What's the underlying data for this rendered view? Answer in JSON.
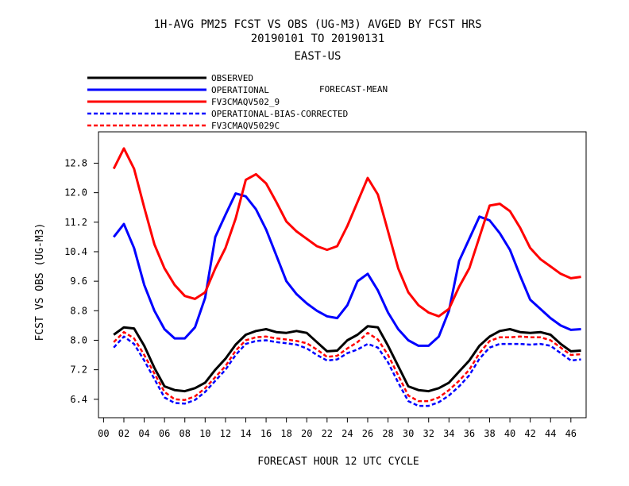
{
  "chart_data": {
    "type": "line",
    "title": "1H-AVG PM25 FCST VS OBS (UG-M3)  AVGED BY FCST HRS",
    "subtitle": "20190101 TO 20190131",
    "region": "EAST-US",
    "legend_note": "FORECAST-MEAN",
    "xlabel": "FORECAST HOUR  12 UTC CYCLE",
    "ylabel": "FCST VS OBS (UG-M3)",
    "xlim": [
      -0.5,
      47.5
    ],
    "ylim": [
      5.9,
      13.65
    ],
    "x_ticks": [
      "00",
      "02",
      "04",
      "06",
      "08",
      "10",
      "12",
      "14",
      "16",
      "18",
      "20",
      "22",
      "24",
      "26",
      "28",
      "30",
      "32",
      "34",
      "36",
      "38",
      "40",
      "42",
      "44",
      "46"
    ],
    "y_ticks": [
      "6.4",
      "7.2",
      "8.0",
      "8.8",
      "9.6",
      "10.4",
      "11.2",
      "12.0",
      "12.8"
    ],
    "x": [
      1,
      2,
      3,
      4,
      5,
      6,
      7,
      8,
      9,
      10,
      11,
      12,
      13,
      14,
      15,
      16,
      17,
      18,
      19,
      20,
      21,
      22,
      23,
      24,
      25,
      26,
      27,
      28,
      29,
      30,
      31,
      32,
      33,
      34,
      35,
      36,
      37,
      38,
      39,
      40,
      41,
      42,
      43,
      44,
      45,
      46,
      47
    ],
    "series": [
      {
        "name": "OBSERVED",
        "color": "#000000",
        "dashed": false,
        "values": [
          8.15,
          8.35,
          8.32,
          7.85,
          7.25,
          6.75,
          6.65,
          6.62,
          6.7,
          6.85,
          7.2,
          7.5,
          7.88,
          8.15,
          8.25,
          8.3,
          8.22,
          8.2,
          8.25,
          8.2,
          7.95,
          7.7,
          7.72,
          8.0,
          8.15,
          8.38,
          8.35,
          7.85,
          7.3,
          6.75,
          6.65,
          6.62,
          6.7,
          6.85,
          7.15,
          7.45,
          7.85,
          8.1,
          8.25,
          8.3,
          8.22,
          8.2,
          8.22,
          8.15,
          7.9,
          7.7,
          7.72
        ]
      },
      {
        "name": "OPERATIONAL",
        "color": "#0000ff",
        "dashed": false,
        "values": [
          10.8,
          11.15,
          10.5,
          9.5,
          8.8,
          8.3,
          8.05,
          8.05,
          8.35,
          9.15,
          10.8,
          11.4,
          11.98,
          11.9,
          11.55,
          11.0,
          10.3,
          9.6,
          9.25,
          9.0,
          8.8,
          8.65,
          8.6,
          8.95,
          9.6,
          9.8,
          9.35,
          8.75,
          8.3,
          8.0,
          7.85,
          7.85,
          8.1,
          8.8,
          10.15,
          10.75,
          11.35,
          11.25,
          10.9,
          10.45,
          9.75,
          9.1,
          8.85,
          8.6,
          8.4,
          8.28,
          8.3
        ]
      },
      {
        "name": "FV3CMAQV502_9",
        "color": "#ff0000",
        "dashed": false,
        "values": [
          12.65,
          13.2,
          12.65,
          11.6,
          10.6,
          9.95,
          9.5,
          9.2,
          9.12,
          9.3,
          9.95,
          10.5,
          11.3,
          12.35,
          12.5,
          12.25,
          11.75,
          11.22,
          10.95,
          10.75,
          10.55,
          10.45,
          10.55,
          11.1,
          11.75,
          12.4,
          11.95,
          10.95,
          9.95,
          9.3,
          8.95,
          8.75,
          8.65,
          8.85,
          9.45,
          9.95,
          10.8,
          11.65,
          11.7,
          11.5,
          11.05,
          10.5,
          10.2,
          10.0,
          9.8,
          9.68,
          9.72
        ]
      },
      {
        "name": "OPERATIONAL-BIAS-CORRECTED",
        "color": "#0000ff",
        "dashed": true,
        "values": [
          7.8,
          8.1,
          7.9,
          7.45,
          6.95,
          6.45,
          6.3,
          6.28,
          6.38,
          6.6,
          6.9,
          7.2,
          7.6,
          7.9,
          7.98,
          8.0,
          7.95,
          7.92,
          7.88,
          7.78,
          7.6,
          7.45,
          7.48,
          7.65,
          7.75,
          7.9,
          7.8,
          7.4,
          6.85,
          6.35,
          6.22,
          6.22,
          6.32,
          6.5,
          6.75,
          7.05,
          7.5,
          7.8,
          7.9,
          7.9,
          7.9,
          7.88,
          7.9,
          7.85,
          7.65,
          7.45,
          7.48
        ]
      },
      {
        "name": "FV3CMAQV5029C",
        "color": "#ff0000",
        "dashed": true,
        "values": [
          7.95,
          8.22,
          8.05,
          7.6,
          7.1,
          6.6,
          6.4,
          6.38,
          6.48,
          6.7,
          7.0,
          7.3,
          7.72,
          8.0,
          8.08,
          8.1,
          8.05,
          8.02,
          7.98,
          7.92,
          7.75,
          7.55,
          7.58,
          7.78,
          7.95,
          8.2,
          8.02,
          7.6,
          7.05,
          6.5,
          6.35,
          6.35,
          6.45,
          6.65,
          6.9,
          7.2,
          7.65,
          7.98,
          8.08,
          8.08,
          8.1,
          8.08,
          8.08,
          8.0,
          7.8,
          7.6,
          7.62
        ]
      }
    ]
  }
}
